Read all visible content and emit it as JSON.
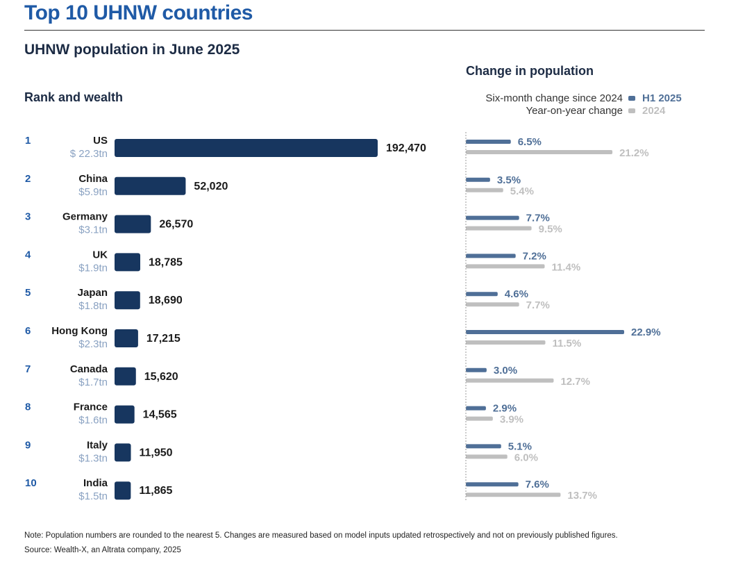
{
  "header": {
    "title": "Top 10 UHNW countries",
    "subtitle": "UHNW population in June 2025"
  },
  "chart_data": [
    {
      "type": "bar",
      "orientation": "horizontal",
      "title": "Rank and wealth",
      "categories": [
        "US",
        "China",
        "Germany",
        "UK",
        "Japan",
        "Hong Kong",
        "Canada",
        "France",
        "Italy",
        "India"
      ],
      "ranks": [
        "1",
        "2",
        "3",
        "4",
        "5",
        "6",
        "7",
        "8",
        "9",
        "10"
      ],
      "wealth": [
        "$ 22.3tn",
        "$5.9tn",
        "$3.1tn",
        "$1.9tn",
        "$1.8tn",
        "$2.3tn",
        "$1.7tn",
        "$1.6tn",
        "$1.3tn",
        "$1.5tn"
      ],
      "values": [
        192470,
        52020,
        26570,
        18785,
        18690,
        17215,
        15620,
        14565,
        11950,
        11865
      ],
      "value_labels": [
        "192,470",
        "52,020",
        "26,570",
        "18,785",
        "18,690",
        "17,215",
        "15,620",
        "14,565",
        "11,950",
        "11,865"
      ],
      "xlim": [
        0,
        192470
      ],
      "color": "#17365f"
    },
    {
      "type": "bar",
      "orientation": "horizontal",
      "title": "Change in population",
      "categories": [
        "US",
        "China",
        "Germany",
        "UK",
        "Japan",
        "Hong Kong",
        "Canada",
        "France",
        "Italy",
        "India"
      ],
      "xlim": [
        0,
        22.9
      ],
      "legend": [
        {
          "label": "Six-month change since 2024",
          "name": "H1 2025",
          "color": "#4f6f97"
        },
        {
          "label": "Year-on-year change",
          "name": "2024",
          "color": "#bfbfbf"
        }
      ],
      "series": [
        {
          "name": "H1 2025",
          "color": "#4f6f97",
          "values": [
            6.5,
            3.5,
            7.7,
            7.2,
            4.6,
            22.9,
            3.0,
            2.9,
            5.1,
            7.6
          ],
          "labels": [
            "6.5%",
            "3.5%",
            "7.7%",
            "7.2%",
            "4.6%",
            "22.9%",
            "3.0%",
            "2.9%",
            "5.1%",
            "7.6%"
          ]
        },
        {
          "name": "2024",
          "color": "#bfbfbf",
          "values": [
            21.2,
            5.4,
            9.5,
            11.4,
            7.7,
            11.5,
            12.7,
            3.9,
            6.0,
            13.7
          ],
          "labels": [
            "21.2%",
            "5.4%",
            "9.5%",
            "11.4%",
            "7.7%",
            "11.5%",
            "12.7%",
            "3.9%",
            "6.0%",
            "13.7%"
          ]
        }
      ]
    }
  ],
  "footer": {
    "note": "Note: Population numbers are rounded to the nearest 5. Changes are measured based on model inputs updated retrospectively and not on previously published figures.",
    "source": "Source: Wealth-X, an Altrata company, 2025"
  }
}
